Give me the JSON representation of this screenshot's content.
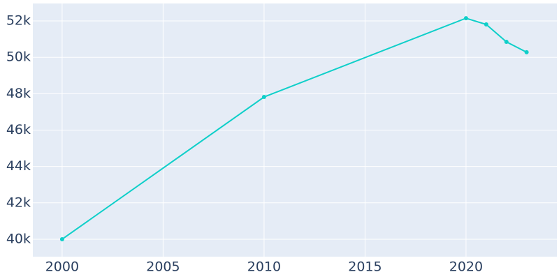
{
  "chart_data": {
    "type": "line",
    "x": [
      2000,
      2010,
      2020,
      2021,
      2022,
      2023
    ],
    "series": [
      {
        "color": "#0fcfc9",
        "values": [
          40000,
          47820,
          52150,
          51810,
          50850,
          50280
        ]
      }
    ],
    "xlim": [
      1998.55,
      2024.5
    ],
    "xticks": [
      2000,
      2005,
      2010,
      2015,
      2020
    ],
    "ylim": [
      39040,
      52960
    ],
    "yticks": [
      {
        "value": 40000,
        "label": "40k"
      },
      {
        "value": 42000,
        "label": "42k"
      },
      {
        "value": 44000,
        "label": "44k"
      },
      {
        "value": 46000,
        "label": "46k"
      },
      {
        "value": 48000,
        "label": "48k"
      },
      {
        "value": 50000,
        "label": "50k"
      },
      {
        "value": 52000,
        "label": "52k"
      }
    ],
    "grid": true
  }
}
